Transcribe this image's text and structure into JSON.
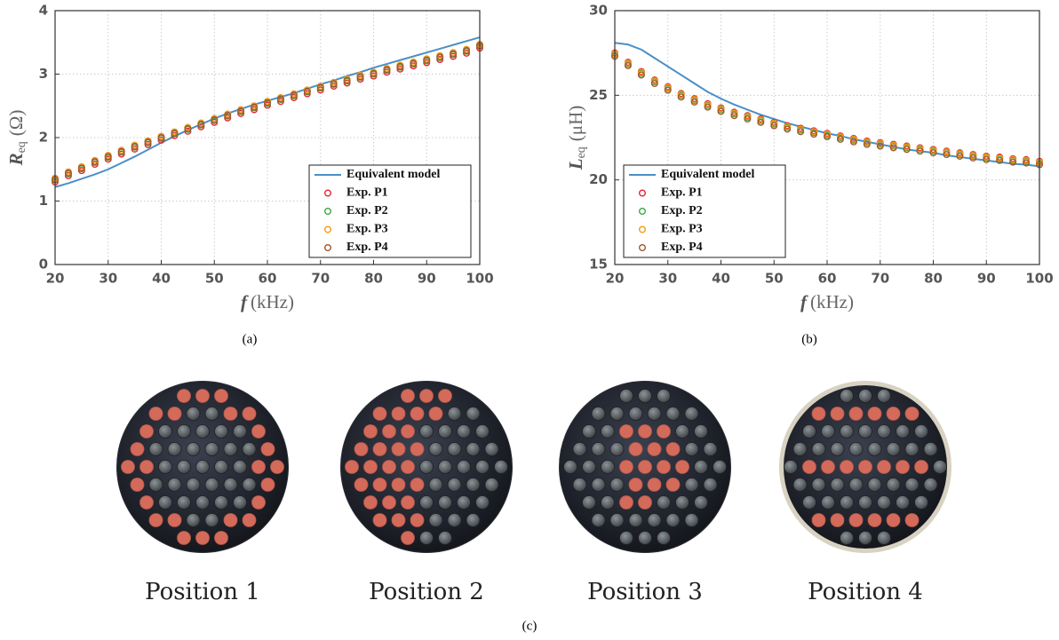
{
  "chart_data": [
    {
      "type": "line",
      "panel_label": "(a)",
      "xlabel": {
        "symbol": "f",
        "unit": "(kHz)"
      },
      "ylabel": {
        "symbol": "R",
        "sub": "eq",
        "unit": "(Ω)"
      },
      "xlim": [
        20,
        100
      ],
      "xticks": [
        20,
        30,
        40,
        50,
        60,
        70,
        80,
        90,
        100
      ],
      "ylim": [
        0,
        4
      ],
      "yticks": [
        0,
        1,
        2,
        3,
        4
      ],
      "grid": true,
      "legend": "lower right",
      "x": [
        20,
        22.5,
        25,
        27.5,
        30,
        32.5,
        35,
        37.5,
        40,
        42.5,
        45,
        47.5,
        50,
        52.5,
        55,
        57.5,
        60,
        62.5,
        65,
        67.5,
        70,
        72.5,
        75,
        77.5,
        80,
        82.5,
        85,
        87.5,
        90,
        92.5,
        95,
        97.5,
        100
      ],
      "series": [
        {
          "name": "Equivalent model",
          "mode": "line",
          "color": "#4a90c8",
          "values": [
            1.22,
            1.28,
            1.35,
            1.42,
            1.5,
            1.6,
            1.7,
            1.81,
            1.92,
            2.02,
            2.12,
            2.21,
            2.3,
            2.38,
            2.45,
            2.52,
            2.58,
            2.64,
            2.7,
            2.77,
            2.84,
            2.9,
            2.97,
            3.03,
            3.1,
            3.16,
            3.22,
            3.28,
            3.34,
            3.4,
            3.46,
            3.52,
            3.58
          ]
        },
        {
          "name": "Exp. P1",
          "mode": "markers",
          "color": "#e3262e",
          "values": [
            1.3,
            1.4,
            1.48,
            1.58,
            1.66,
            1.74,
            1.82,
            1.89,
            1.96,
            2.03,
            2.1,
            2.17,
            2.24,
            2.31,
            2.38,
            2.44,
            2.51,
            2.57,
            2.63,
            2.69,
            2.75,
            2.81,
            2.86,
            2.92,
            2.97,
            3.03,
            3.08,
            3.13,
            3.18,
            3.23,
            3.28,
            3.33,
            3.41
          ]
        },
        {
          "name": "Exp. P2",
          "mode": "markers",
          "color": "#3aa845",
          "values": [
            1.33,
            1.43,
            1.51,
            1.61,
            1.69,
            1.77,
            1.85,
            1.92,
            1.99,
            2.06,
            2.13,
            2.2,
            2.27,
            2.34,
            2.41,
            2.47,
            2.54,
            2.6,
            2.66,
            2.72,
            2.78,
            2.84,
            2.89,
            2.95,
            3.0,
            3.06,
            3.11,
            3.16,
            3.21,
            3.26,
            3.31,
            3.36,
            3.44
          ]
        },
        {
          "name": "Exp. P3",
          "mode": "markers",
          "color": "#f39c12",
          "values": [
            1.36,
            1.46,
            1.54,
            1.64,
            1.72,
            1.8,
            1.88,
            1.95,
            2.02,
            2.09,
            2.16,
            2.23,
            2.3,
            2.37,
            2.44,
            2.5,
            2.57,
            2.63,
            2.69,
            2.75,
            2.81,
            2.87,
            2.92,
            2.98,
            3.03,
            3.09,
            3.14,
            3.19,
            3.24,
            3.29,
            3.34,
            3.39,
            3.47
          ]
        },
        {
          "name": "Exp. P4",
          "mode": "markers",
          "color": "#a0582f",
          "values": [
            1.34,
            1.44,
            1.52,
            1.62,
            1.7,
            1.78,
            1.86,
            1.93,
            2.0,
            2.07,
            2.14,
            2.21,
            2.28,
            2.35,
            2.42,
            2.48,
            2.55,
            2.61,
            2.67,
            2.73,
            2.79,
            2.85,
            2.9,
            2.96,
            3.01,
            3.07,
            3.12,
            3.17,
            3.22,
            3.27,
            3.32,
            3.37,
            3.45
          ]
        }
      ]
    },
    {
      "type": "line",
      "panel_label": "(b)",
      "xlabel": {
        "symbol": "f",
        "unit": "(kHz)"
      },
      "ylabel": {
        "symbol": "L",
        "sub": "eq",
        "unit": "(μH)"
      },
      "xlim": [
        20,
        100
      ],
      "xticks": [
        20,
        30,
        40,
        50,
        60,
        70,
        80,
        90,
        100
      ],
      "ylim": [
        15,
        30
      ],
      "yticks": [
        15,
        20,
        25,
        30
      ],
      "grid": true,
      "legend": "lower left",
      "x": [
        20,
        22.5,
        25,
        27.5,
        30,
        32.5,
        35,
        37.5,
        40,
        42.5,
        45,
        47.5,
        50,
        52.5,
        55,
        57.5,
        60,
        62.5,
        65,
        67.5,
        70,
        72.5,
        75,
        77.5,
        80,
        82.5,
        85,
        87.5,
        90,
        92.5,
        95,
        97.5,
        100
      ],
      "series": [
        {
          "name": "Equivalent model",
          "mode": "line",
          "color": "#4a90c8",
          "values": [
            28.1,
            28.0,
            27.7,
            27.2,
            26.7,
            26.2,
            25.7,
            25.2,
            24.8,
            24.45,
            24.15,
            23.85,
            23.6,
            23.35,
            23.15,
            22.95,
            22.75,
            22.6,
            22.4,
            22.25,
            22.1,
            21.95,
            21.8,
            21.7,
            21.6,
            21.45,
            21.35,
            21.25,
            21.15,
            21.05,
            20.95,
            20.9,
            20.8
          ]
        },
        {
          "name": "Exp. P1",
          "mode": "markers",
          "color": "#e3262e",
          "values": [
            27.5,
            26.95,
            26.4,
            25.9,
            25.5,
            25.1,
            24.8,
            24.5,
            24.25,
            24.0,
            23.8,
            23.6,
            23.4,
            23.2,
            23.05,
            22.9,
            22.75,
            22.6,
            22.45,
            22.3,
            22.2,
            22.1,
            22.0,
            21.9,
            21.8,
            21.7,
            21.6,
            21.5,
            21.4,
            21.35,
            21.25,
            21.2,
            21.1
          ]
        },
        {
          "name": "Exp. P2",
          "mode": "markers",
          "color": "#3aa845",
          "values": [
            27.4,
            26.85,
            26.3,
            25.8,
            25.4,
            25.0,
            24.7,
            24.4,
            24.15,
            23.9,
            23.7,
            23.5,
            23.3,
            23.1,
            22.95,
            22.8,
            22.65,
            22.5,
            22.35,
            22.2,
            22.1,
            22.0,
            21.9,
            21.8,
            21.7,
            21.6,
            21.5,
            21.4,
            21.3,
            21.25,
            21.15,
            21.1,
            21.0
          ]
        },
        {
          "name": "Exp. P3",
          "mode": "markers",
          "color": "#f39c12",
          "values": [
            27.45,
            26.9,
            26.35,
            25.85,
            25.45,
            25.05,
            24.75,
            24.45,
            24.2,
            23.95,
            23.75,
            23.55,
            23.35,
            23.15,
            23.0,
            22.85,
            22.7,
            22.55,
            22.4,
            22.25,
            22.15,
            22.05,
            21.95,
            21.85,
            21.75,
            21.65,
            21.55,
            21.45,
            21.35,
            21.3,
            21.2,
            21.15,
            21.05
          ]
        },
        {
          "name": "Exp. P4",
          "mode": "markers",
          "color": "#a0582f",
          "values": [
            27.3,
            26.75,
            26.2,
            25.7,
            25.3,
            24.9,
            24.6,
            24.3,
            24.05,
            23.8,
            23.6,
            23.4,
            23.2,
            23.0,
            22.85,
            22.7,
            22.55,
            22.4,
            22.25,
            22.1,
            22.0,
            21.9,
            21.8,
            21.7,
            21.6,
            21.5,
            21.4,
            21.3,
            21.2,
            21.15,
            21.05,
            21.0,
            20.9
          ]
        }
      ]
    }
  ],
  "photos": {
    "panel_label": "(c)",
    "captions": [
      "Position 1",
      "Position 2",
      "Position 3",
      "Position 4"
    ]
  }
}
